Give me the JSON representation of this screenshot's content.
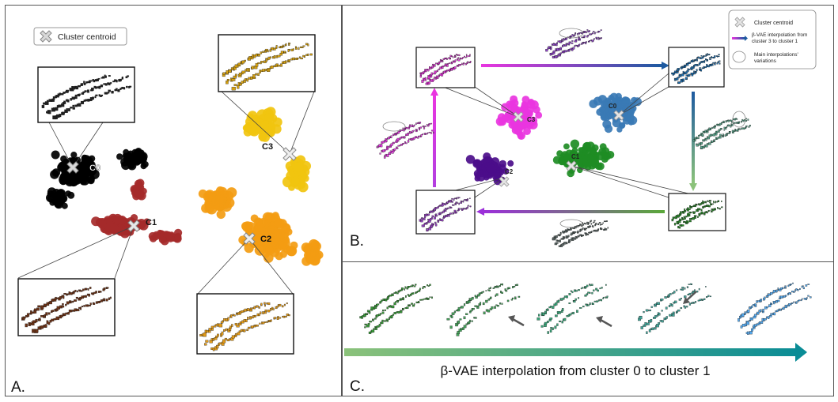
{
  "panels": {
    "a": {
      "letter": "A.",
      "legend_label": "Cluster centroid",
      "clusters": [
        {
          "label": "C0",
          "color": "#000000"
        },
        {
          "label": "C1",
          "color": "#a52a2a"
        },
        {
          "label": "C2",
          "color": "#f39c12"
        },
        {
          "label": "C3",
          "color": "#f1c40f"
        }
      ],
      "inset_colors": [
        "#222222",
        "#d4a012",
        "#6b3318",
        "#e09a1a"
      ]
    },
    "b": {
      "letter": "B.",
      "legend": {
        "centroid": "Cluster centroid",
        "interp_line1": "β-VAE interpolation from",
        "interp_line2": "cluster 3 to cluster 1",
        "var_line1": "Main interpolations'",
        "var_line2": "variations"
      },
      "clusters": [
        {
          "label": "C0",
          "color": "#3a7ab5"
        },
        {
          "label": "C1",
          "color": "#1e8c24"
        },
        {
          "label": "C2",
          "color": "#4b0d8a"
        },
        {
          "label": "C3",
          "color": "#e935e0"
        }
      ],
      "inset_colors": [
        "#e238d9",
        "#1f6fb0",
        "#9b45c7",
        "#2e8b2e"
      ],
      "float_colors": [
        "#8e45c6",
        "#e33be0",
        "#5aa38a",
        "#5f6b6a"
      ]
    },
    "c": {
      "letter": "C.",
      "caption": "β-VAE interpolation from cluster 0 to cluster 1",
      "shape_colors": [
        "#3a9a3a",
        "#45a05a",
        "#3aa57a",
        "#43a59a",
        "#55aaf0"
      ],
      "arrow_gradient": [
        "#8bc27a",
        "#0a8c96"
      ]
    }
  }
}
